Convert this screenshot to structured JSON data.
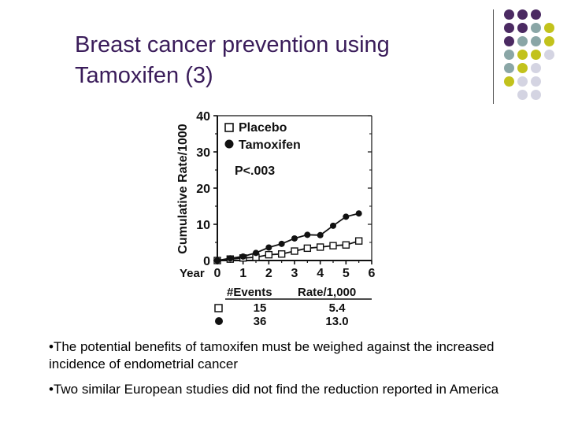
{
  "slide": {
    "title_line1": "Breast cancer prevention using",
    "title_line2": "Tamoxifen (3)",
    "bullets": [
      "•The potential benefits of tamoxifen must be weighed against the increased incidence of endometrial cancer",
      "•Two similar European studies did not find the reduction reported in America"
    ]
  },
  "colors": {
    "title": "#3a1c5a",
    "accent_purple": "#4b2a62",
    "accent_teal": "#8aa6a6",
    "accent_olive": "#c2c21c",
    "accent_lavender": "#d4d4e2"
  },
  "chart_data": {
    "type": "line",
    "ylabel": "Cumulative Rate/1000",
    "year_label": "Year",
    "x": [
      0,
      0.5,
      1,
      1.5,
      2,
      2.5,
      3,
      3.5,
      4,
      4.5,
      5,
      5.5
    ],
    "xlim": [
      0,
      6
    ],
    "ylim": [
      0,
      40
    ],
    "x_ticks": [
      "0",
      "1",
      "2",
      "3",
      "4",
      "5",
      "6"
    ],
    "y_ticks": [
      "0",
      "10",
      "20",
      "30",
      "40"
    ],
    "series": [
      {
        "name": "Placebo",
        "marker": "open-square",
        "values": [
          0,
          0.4,
          0.7,
          0.9,
          1.6,
          1.8,
          2.6,
          3.4,
          3.7,
          4.1,
          4.3,
          5.4
        ]
      },
      {
        "name": "Tamoxifen",
        "marker": "filled-circle",
        "values": [
          0,
          0.6,
          1.1,
          2.1,
          3.6,
          4.6,
          6.1,
          7.1,
          7.0,
          9.6,
          12.1,
          13.0
        ]
      }
    ],
    "annotation": "P<.003",
    "table": {
      "headers": [
        "#Events",
        "Rate/1,000"
      ],
      "rows": [
        {
          "marker": "open-square",
          "events": "15",
          "rate": "5.4"
        },
        {
          "marker": "filled-circle",
          "events": "36",
          "rate": "13.0"
        }
      ]
    }
  }
}
